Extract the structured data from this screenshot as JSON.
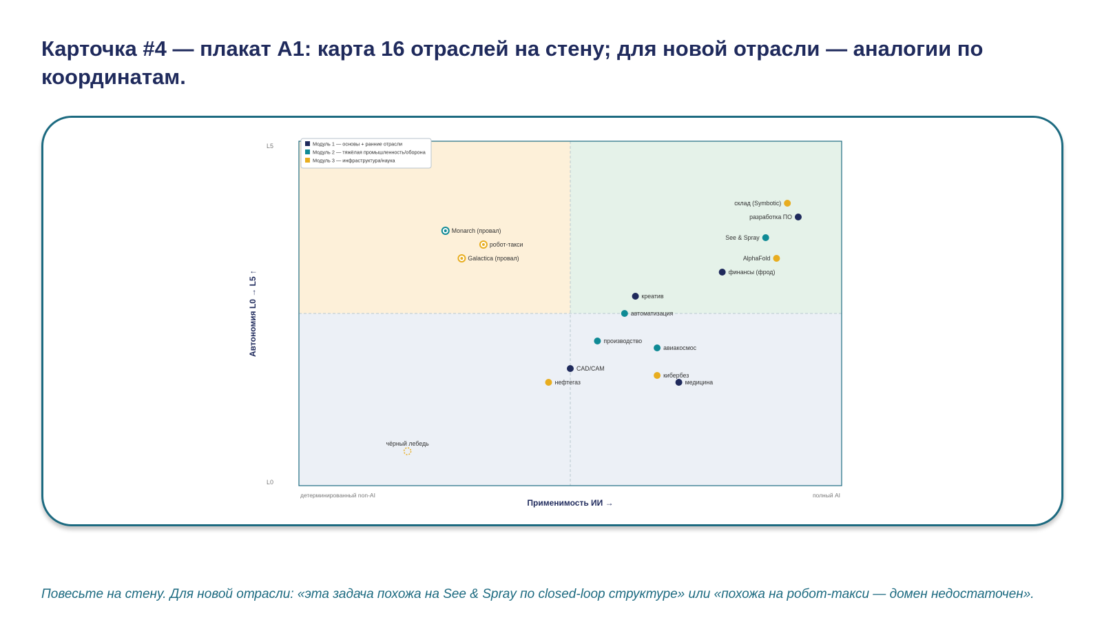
{
  "page": {
    "title": "Карточка #4 — плакат A1: карта 16 отраслей на стену; для новой отрасли — аналогии по координатам.",
    "footer": "Повесьте на стену. Для новой отрасли: «эта задача похожа на See & Spray по closed-loop структуре» или «похожа на робот-такси — домен недостаточен»."
  },
  "colors": {
    "module1": "#1f2a5c",
    "module2": "#0f8a95",
    "module3": "#e8ad1f",
    "quadrant_top_left": "#fdf0d9",
    "quadrant_top_right": "#e5f2e9",
    "quadrant_bottom": "#ecf0f6",
    "title": "#1f2a5c",
    "accent": "#1c6a80"
  },
  "chart_data": {
    "type": "scatter",
    "xlabel": "Применимость ИИ →",
    "ylabel": "Автономия L0 → L5 ↑",
    "x_tick_left": "детерминированный non-AI",
    "x_tick_right": "полный AI",
    "y_tick_top": "L5",
    "y_tick_bottom": "L0",
    "xlim": [
      0,
      100
    ],
    "ylim": [
      0,
      5
    ],
    "quadrant_split": {
      "x": 50,
      "y": 2.5
    },
    "grid": false,
    "legend_position": "top-left",
    "legend": [
      {
        "series": "module1",
        "label": "Модуль 1 — основы + ранние отрасли"
      },
      {
        "series": "module2",
        "label": "Модуль 2 — тяжёлая промышленность/оборона"
      },
      {
        "series": "module3",
        "label": "Модуль 3 — инфраструктура/наука"
      }
    ],
    "points": [
      {
        "label": "склад (Symbotic)",
        "x": 90,
        "y": 4.1,
        "series": "module3",
        "marker": "dot",
        "label_side": "left"
      },
      {
        "label": "разработка ПО",
        "x": 92,
        "y": 3.9,
        "series": "module1",
        "marker": "dot",
        "label_side": "left"
      },
      {
        "label": "See & Spray",
        "x": 86,
        "y": 3.6,
        "series": "module2",
        "marker": "dot",
        "label_side": "left"
      },
      {
        "label": "AlphaFold",
        "x": 88,
        "y": 3.3,
        "series": "module3",
        "marker": "dot",
        "label_side": "left"
      },
      {
        "label": "финансы (фрод)",
        "x": 78,
        "y": 3.1,
        "series": "module1",
        "marker": "dot",
        "label_side": "right"
      },
      {
        "label": "креатив",
        "x": 62,
        "y": 2.75,
        "series": "module1",
        "marker": "dot",
        "label_side": "right"
      },
      {
        "label": "автоматизация",
        "x": 60,
        "y": 2.5,
        "series": "module2",
        "marker": "dot",
        "label_side": "right"
      },
      {
        "label": "производство",
        "x": 55,
        "y": 2.1,
        "series": "module2",
        "marker": "dot",
        "label_side": "right"
      },
      {
        "label": "авиакосмос",
        "x": 66,
        "y": 2.0,
        "series": "module2",
        "marker": "dot",
        "label_side": "right"
      },
      {
        "label": "CAD/CAM",
        "x": 50,
        "y": 1.7,
        "series": "module1",
        "marker": "dot",
        "label_side": "right"
      },
      {
        "label": "кибербез",
        "x": 66,
        "y": 1.6,
        "series": "module3",
        "marker": "dot",
        "label_side": "right"
      },
      {
        "label": "медицина",
        "x": 70,
        "y": 1.5,
        "series": "module1",
        "marker": "dot",
        "label_side": "right"
      },
      {
        "label": "нефтегаз",
        "x": 46,
        "y": 1.5,
        "series": "module3",
        "marker": "dot",
        "label_side": "right"
      },
      {
        "label": "Monarch (провал)",
        "x": 27,
        "y": 3.7,
        "series": "module2",
        "marker": "ring",
        "label_side": "right"
      },
      {
        "label": "робот-такси",
        "x": 34,
        "y": 3.5,
        "series": "module3",
        "marker": "ring",
        "label_side": "right"
      },
      {
        "label": "Galactica (провал)",
        "x": 30,
        "y": 3.3,
        "series": "module3",
        "marker": "ring",
        "label_side": "right"
      },
      {
        "label": "чёрный лебедь",
        "x": 20,
        "y": 0.5,
        "series": "module3",
        "marker": "dashed",
        "label_side": "above"
      }
    ]
  }
}
